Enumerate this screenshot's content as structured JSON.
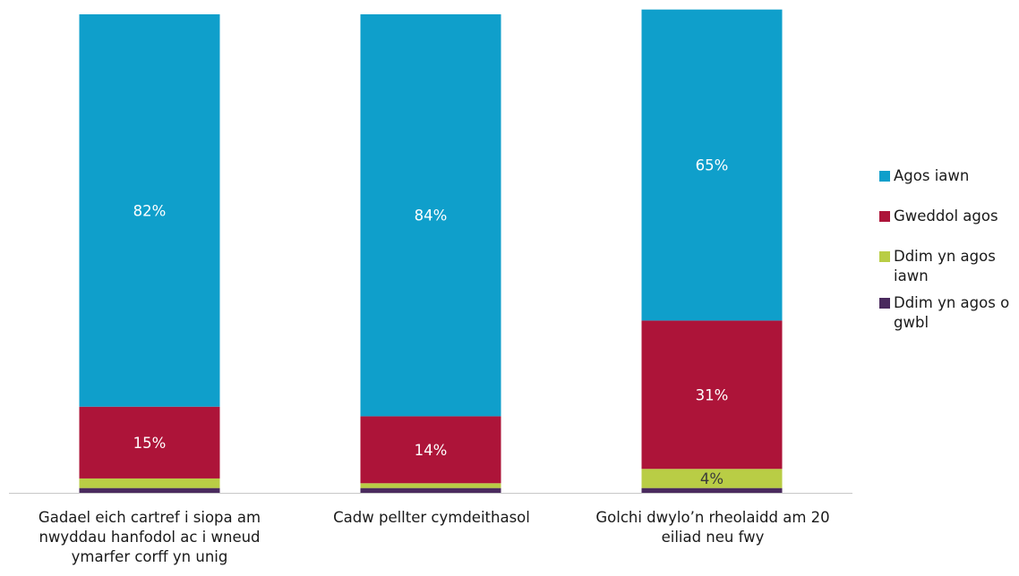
{
  "chart_data": {
    "type": "bar",
    "stacked": true,
    "percent_stacked": true,
    "categories": [
      [
        "Gadael eich cartref i siopa am",
        "nwyddau hanfodol ac i wneud",
        "ymarfer corff yn unig"
      ],
      [
        "Cadw pellter cymdeithasol"
      ],
      [
        "Golchi dwylo’n rheolaidd am 20",
        "eiliad neu fwy"
      ]
    ],
    "series": [
      {
        "name": "Ddim yn agos o gwbl",
        "legend_lines": [
          "Ddim yn agos o",
          "gwbl"
        ],
        "values": [
          1,
          1,
          1
        ],
        "labels": [
          "",
          "",
          ""
        ],
        "color": "#4a2a5e"
      },
      {
        "name": "Ddim yn agos iawn",
        "legend_lines": [
          "Ddim yn agos",
          "iawn"
        ],
        "values": [
          2,
          1,
          4
        ],
        "labels": [
          "",
          "",
          "4%"
        ],
        "color": "#b9cd45"
      },
      {
        "name": "Gweddol agos",
        "legend_lines": [
          "Gweddol agos"
        ],
        "values": [
          15,
          14,
          31
        ],
        "labels": [
          "15%",
          "14%",
          "31%"
        ],
        "color": "#ad1439"
      },
      {
        "name": "Agos iawn",
        "legend_lines": [
          "Agos iawn"
        ],
        "values": [
          82,
          84,
          65
        ],
        "labels": [
          "82%",
          "84%",
          "65%"
        ],
        "color": "#0f9fcb"
      }
    ],
    "legend_order": [
      3,
      2,
      1,
      0
    ],
    "legend_position": "right",
    "ylim": [
      0,
      100
    ],
    "grid": false,
    "title": "",
    "xlabel": "",
    "ylabel": ""
  }
}
